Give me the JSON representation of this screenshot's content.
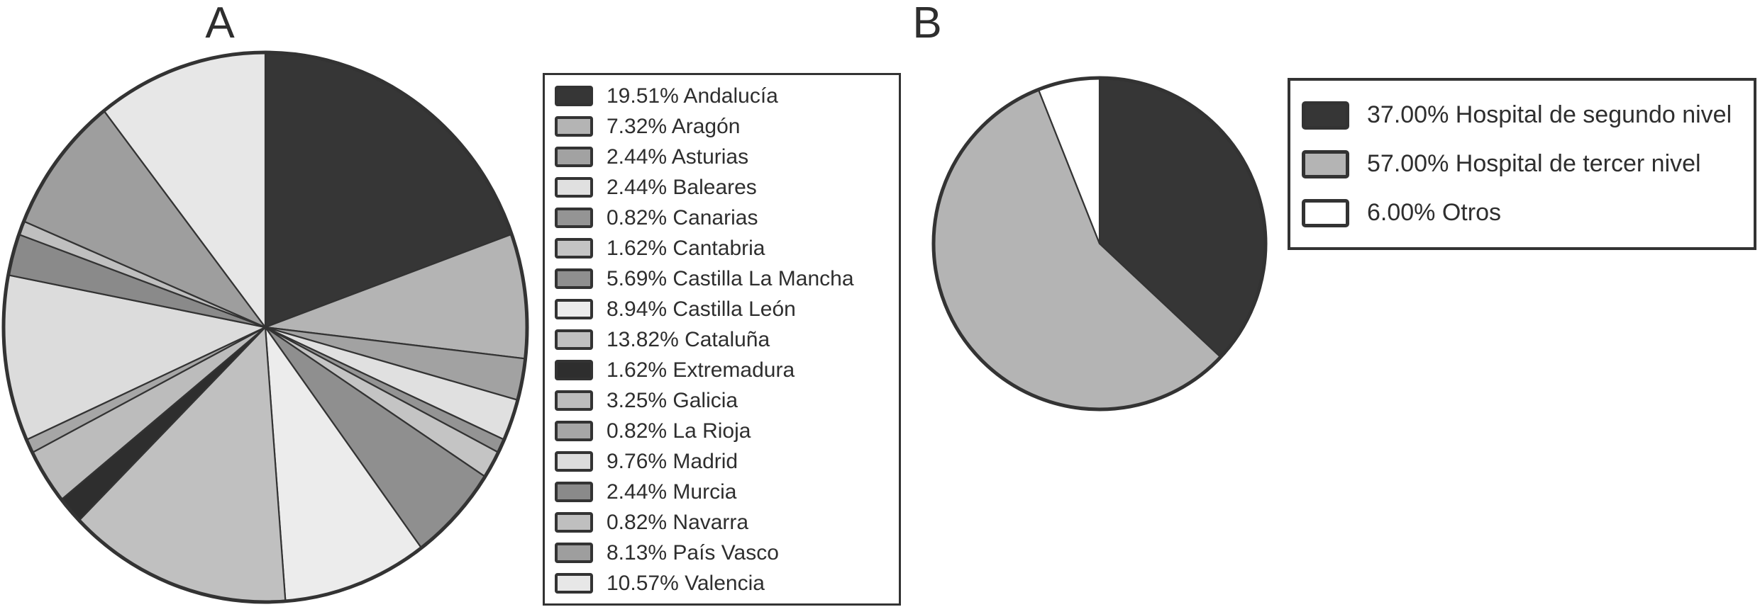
{
  "panels": [
    {
      "title": "A"
    },
    {
      "title": "B"
    }
  ],
  "colors": {
    "outline": "#333333",
    "text": "#2e2e2e",
    "background": "#ffffff"
  },
  "chart_data": [
    {
      "id": "A",
      "type": "pie",
      "panel_label": "A",
      "start_angle": "12-oclock",
      "direction": "clockwise",
      "legend_position": "right",
      "items": [
        {
          "name": "Andalucía",
          "value": 19.51,
          "label": "19.51% Andalucía",
          "color": "#363636"
        },
        {
          "name": "Aragón",
          "value": 7.32,
          "label": "7.32% Aragón",
          "color": "#b4b4b4"
        },
        {
          "name": "Asturias",
          "value": 2.44,
          "label": "2.44% Asturias",
          "color": "#a2a2a2"
        },
        {
          "name": "Baleares",
          "value": 2.44,
          "label": "2.44% Baleares",
          "color": "#e0e0e0"
        },
        {
          "name": "Canarias",
          "value": 0.82,
          "label": "0.82% Canarias",
          "color": "#949494"
        },
        {
          "name": "Cantabria",
          "value": 1.62,
          "label": "1.62% Cantabria",
          "color": "#c4c4c4"
        },
        {
          "name": "Castilla La Mancha",
          "value": 5.69,
          "label": "5.69% Castilla La Mancha",
          "color": "#8f8f8f"
        },
        {
          "name": "Castilla León",
          "value": 8.94,
          "label": "8.94% Castilla León",
          "color": "#ececec"
        },
        {
          "name": "Cataluña",
          "value": 13.82,
          "label": "13.82% Cataluña",
          "color": "#c0c0c0"
        },
        {
          "name": "Extremadura",
          "value": 1.62,
          "label": "1.62% Extremadura",
          "color": "#2e2e2e"
        },
        {
          "name": "Galicia",
          "value": 3.25,
          "label": "3.25% Galicia",
          "color": "#bcbcbc"
        },
        {
          "name": "La Rioja",
          "value": 0.82,
          "label": "0.82% La Rioja",
          "color": "#a6a6a6"
        },
        {
          "name": "Madrid",
          "value": 9.76,
          "label": "9.76% Madrid",
          "color": "#dcdcdc"
        },
        {
          "name": "Murcia",
          "value": 2.44,
          "label": "2.44% Murcia",
          "color": "#8a8a8a"
        },
        {
          "name": "Navarra",
          "value": 0.82,
          "label": "0.82% Navarra",
          "color": "#bfbfbf"
        },
        {
          "name": "País Vasco",
          "value": 8.13,
          "label": "8.13% País Vasco",
          "color": "#9e9e9e"
        },
        {
          "name": "Valencia",
          "value": 10.57,
          "label": "10.57% Valencia",
          "color": "#e7e7e7"
        }
      ]
    },
    {
      "id": "B",
      "type": "pie",
      "panel_label": "B",
      "start_angle": "12-oclock",
      "direction": "clockwise",
      "legend_position": "right",
      "items": [
        {
          "name": "Hospital de segundo nivel",
          "value": 37.0,
          "label": "37.00% Hospital de segundo nivel",
          "color": "#363636"
        },
        {
          "name": "Hospital de tercer nivel",
          "value": 57.0,
          "label": "57.00% Hospital de tercer nivel",
          "color": "#b4b4b4"
        },
        {
          "name": "Otros",
          "value": 6.0,
          "label": "6.00% Otros",
          "color": "#ffffff"
        }
      ]
    }
  ]
}
